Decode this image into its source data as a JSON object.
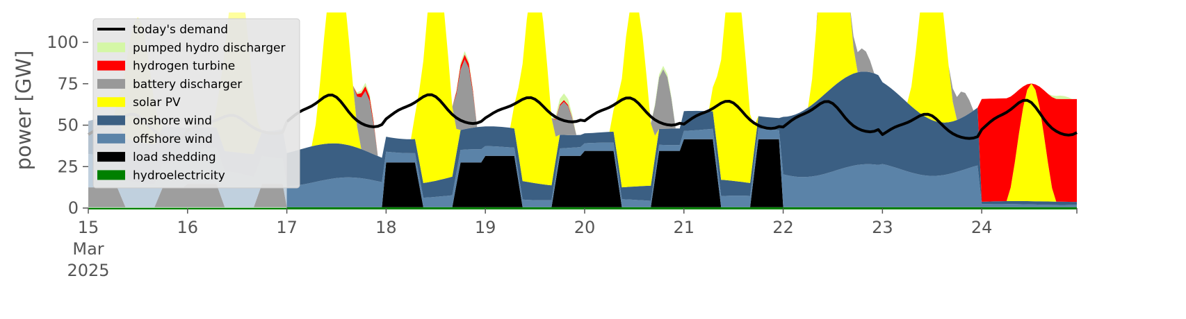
{
  "chart_data": {
    "type": "area",
    "ylabel": "power [GW]",
    "ylim": [
      0,
      118
    ],
    "xlim": [
      0,
      239
    ],
    "yticks": [
      0,
      25,
      50,
      75,
      100
    ],
    "xticks": [
      {
        "hour": 0,
        "lines": [
          "15",
          "Mar",
          "2025"
        ]
      },
      {
        "hour": 24,
        "lines": [
          "16"
        ]
      },
      {
        "hour": 48,
        "lines": [
          "17"
        ]
      },
      {
        "hour": 72,
        "lines": [
          "18"
        ]
      },
      {
        "hour": 96,
        "lines": [
          "19"
        ]
      },
      {
        "hour": 120,
        "lines": [
          "20"
        ]
      },
      {
        "hour": 144,
        "lines": [
          "21"
        ]
      },
      {
        "hour": 168,
        "lines": [
          "22"
        ]
      },
      {
        "hour": 192,
        "lines": [
          "23"
        ]
      },
      {
        "hour": 216,
        "lines": [
          "24"
        ]
      }
    ],
    "x_axis_note": "hourly, 15 Mar 2025 00:00 to 24 Mar 2025 23:00",
    "grid": false,
    "legend_position": "top-left",
    "legend": [
      {
        "label": "today's demand",
        "kind": "line",
        "color": "#000000"
      },
      {
        "label": "pumped hydro discharger",
        "kind": "patch",
        "color": "#d4f7a6"
      },
      {
        "label": "hydrogen turbine",
        "kind": "patch",
        "color": "#ff0000"
      },
      {
        "label": "battery discharger",
        "kind": "patch",
        "color": "#999999"
      },
      {
        "label": "solar PV",
        "kind": "patch",
        "color": "#ffff00"
      },
      {
        "label": "onshore wind",
        "kind": "patch",
        "color": "#3b5f83"
      },
      {
        "label": "offshore wind",
        "kind": "patch",
        "color": "#5b83a8"
      },
      {
        "label": "load shedding",
        "kind": "patch",
        "color": "#000000"
      },
      {
        "label": "hydroelectricity",
        "kind": "patch",
        "color": "#008000"
      }
    ],
    "stack_order": [
      "hydroelectricity",
      "load shedding",
      "offshore wind",
      "onshore wind",
      "solar PV",
      "battery discharger",
      "hydrogen turbine",
      "pumped hydro discharger"
    ],
    "daily_profile": [
      {
        "day": "15 Mar",
        "hydro": 0.5,
        "shed_night": 12,
        "offshore": 20,
        "onshore": 25,
        "solar_peak": 75,
        "battery_evening": 0,
        "hydrogen_evening": 0,
        "pumped_evening": 0,
        "demand_min": 42,
        "demand_peak": 58
      },
      {
        "day": "16 Mar",
        "hydro": 0.5,
        "shed_night": 14,
        "offshore": 22,
        "onshore": 20,
        "solar_peak": 106,
        "battery_evening": 0,
        "hydrogen_evening": 0,
        "pumped_evening": 0,
        "demand_min": 45,
        "demand_peak": 57
      },
      {
        "day": "17 Mar",
        "hydro": 0.5,
        "shed_night": 0,
        "offshore": 18,
        "onshore": 22,
        "solar_peak": 111,
        "battery_evening": 36,
        "hydrogen_evening": 3,
        "pumped_evening": 2,
        "demand_min": 49,
        "demand_peak": 70
      },
      {
        "day": "18 Mar",
        "hydro": 0.5,
        "shed_night": 27,
        "offshore": 8,
        "onshore": 14,
        "solar_peak": 128,
        "battery_evening": 42,
        "hydrogen_evening": 3,
        "pumped_evening": 2,
        "demand_min": 51,
        "demand_peak": 70
      },
      {
        "day": "19 Mar",
        "hydro": 0.5,
        "shed_night": 31,
        "offshore": 6,
        "onshore": 12,
        "solar_peak": 123,
        "battery_evening": 20,
        "hydrogen_evening": 1,
        "pumped_evening": 4,
        "demand_min": 52,
        "demand_peak": 68
      },
      {
        "day": "20 Mar",
        "hydro": 0.5,
        "shed_night": 34,
        "offshore": 5,
        "onshore": 10,
        "solar_peak": 114,
        "battery_evening": 36,
        "hydrogen_evening": 0,
        "pumped_evening": 2,
        "demand_min": 50,
        "demand_peak": 68
      },
      {
        "day": "21 Mar",
        "hydro": 0.5,
        "shed_night": 41,
        "offshore": 7,
        "onshore": 12,
        "solar_peak": 126,
        "battery_evening": 0,
        "hydrogen_evening": 0,
        "pumped_evening": 0,
        "demand_min": 48,
        "demand_peak": 66
      },
      {
        "day": "22 Mar",
        "hydro": 0.5,
        "shed_night": 0,
        "offshore": 26,
        "onshore": 56,
        "solar_peak": 135,
        "battery_evening": 14,
        "hydrogen_evening": 0,
        "pumped_evening": 0,
        "demand_min": 46,
        "demand_peak": 66
      },
      {
        "day": "23 Mar",
        "hydro": 0.5,
        "shed_night": 0,
        "offshore": 27,
        "onshore": 52,
        "solar_peak": 103,
        "battery_evening": 16,
        "hydrogen_evening": 0,
        "pumped_evening": 0,
        "demand_min": 42,
        "demand_peak": 58
      },
      {
        "day": "24 Mar",
        "hydro": 0.5,
        "shed_night": 0,
        "offshore": 2,
        "onshore": 2,
        "solar_peak": 71,
        "battery_evening": 0,
        "hydrogen_evening": 62,
        "pumped_evening": 2,
        "demand_min": 44,
        "demand_peak": 67
      }
    ],
    "faded_region_end_hour": 48
  }
}
